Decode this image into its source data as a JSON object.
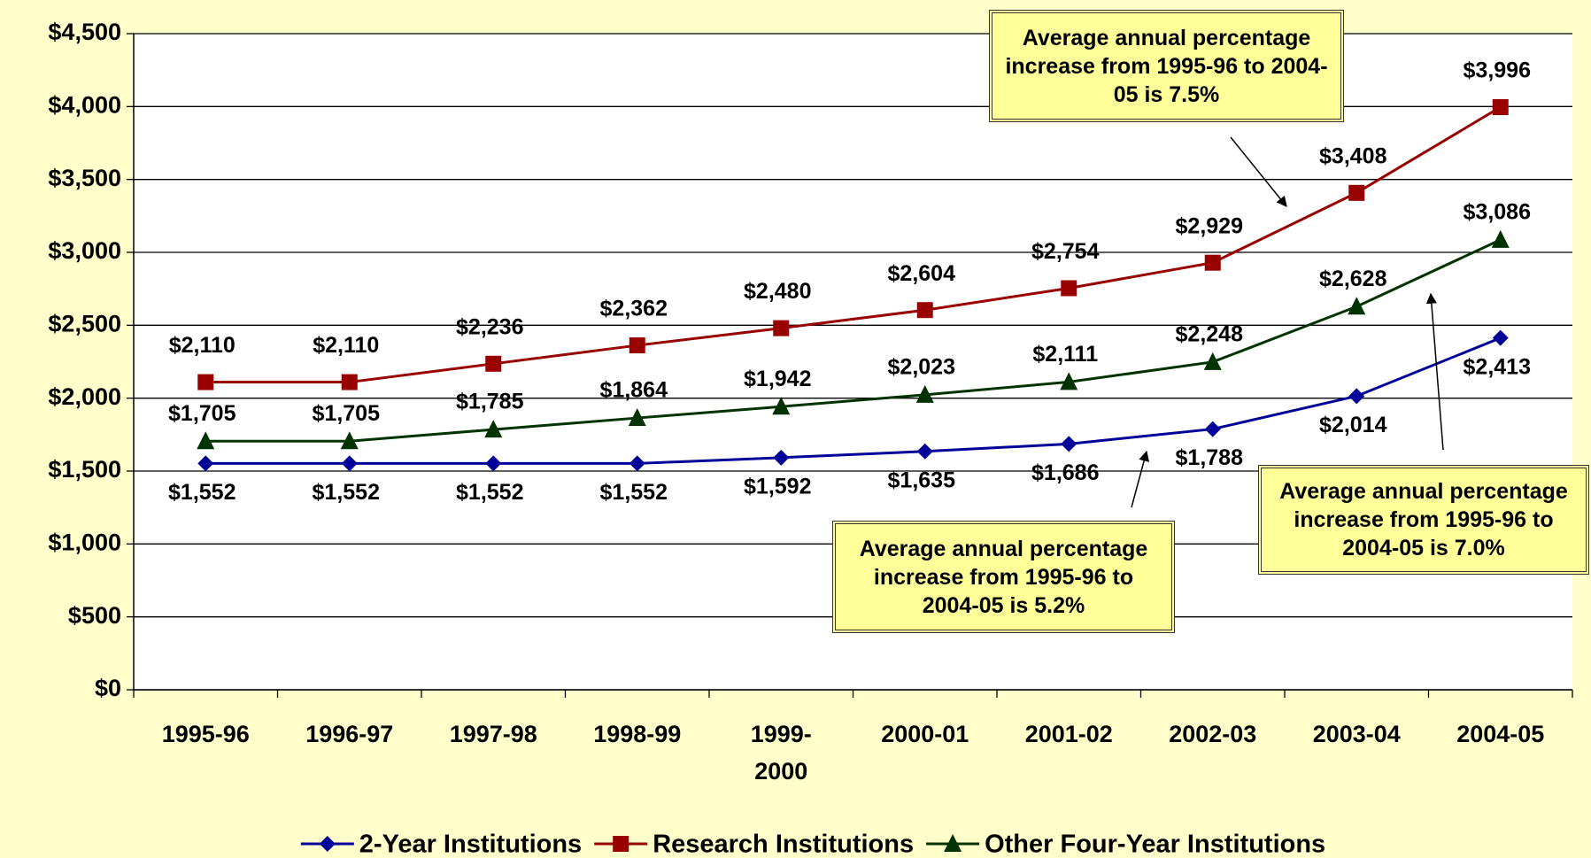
{
  "chart_data": {
    "type": "line",
    "categories": [
      "1995-96",
      "1996-97",
      "1997-98",
      "1998-99",
      "1999-2000",
      "2000-01",
      "2001-02",
      "2002-03",
      "2003-04",
      "2004-05"
    ],
    "series": [
      {
        "name": "2-Year Institutions",
        "color": "#000099",
        "marker": "diamond",
        "values": [
          1552,
          1552,
          1552,
          1552,
          1592,
          1635,
          1686,
          1788,
          2014,
          2413
        ],
        "value_labels": [
          "$1,552",
          "$1,552",
          "$1,552",
          "$1,552",
          "$1,592",
          "$1,635",
          "$1,686",
          "$1,788",
          "$2,014",
          "$2,413"
        ]
      },
      {
        "name": "Research Institutions",
        "color": "#990000",
        "marker": "square",
        "values": [
          2110,
          2110,
          2236,
          2362,
          2480,
          2604,
          2754,
          2929,
          3408,
          3996
        ],
        "value_labels": [
          "$2,110",
          "$2,110",
          "$2,236",
          "$2,362",
          "$2,480",
          "$2,604",
          "$2,754",
          "$2,929",
          "$3,408",
          "$3,996"
        ]
      },
      {
        "name": "Other Four-Year Institutions",
        "color": "#003300",
        "marker": "triangle",
        "values": [
          1705,
          1705,
          1785,
          1864,
          1942,
          2023,
          2111,
          2248,
          2628,
          3086
        ],
        "value_labels": [
          "$1,705",
          "$1,705",
          "$1,785",
          "$1,864",
          "$1,942",
          "$2,023",
          "$2,111",
          "$2,248",
          "$2,628",
          "$3,086"
        ]
      }
    ],
    "ylim": [
      0,
      4500
    ],
    "yticks": [
      {
        "value": 0,
        "label": "$0"
      },
      {
        "value": 500,
        "label": "$500"
      },
      {
        "value": 1000,
        "label": "$1,000"
      },
      {
        "value": 1500,
        "label": "$1,500"
      },
      {
        "value": 2000,
        "label": "$2,000"
      },
      {
        "value": 2500,
        "label": "$2,500"
      },
      {
        "value": 3000,
        "label": "$3,000"
      },
      {
        "value": 3500,
        "label": "$3,500"
      },
      {
        "value": 4000,
        "label": "$4,000"
      },
      {
        "value": 4500,
        "label": "$4,500"
      }
    ],
    "grid": true,
    "legend": "bottom",
    "annotations": [
      "Average annual percentage increase from 1995-96 to 2004-05 is 7.5%",
      "Average annual percentage increase from 1995-96 to 2004-05 is 5.2%",
      "Average annual percentage increase from 1995-96 to 2004-05 is 7.0%"
    ]
  }
}
